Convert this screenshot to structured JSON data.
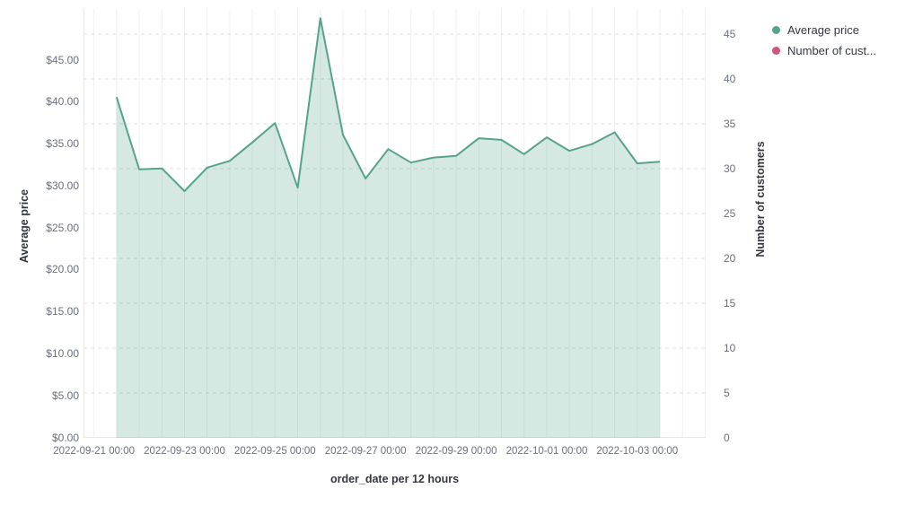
{
  "legend": {
    "items": [
      {
        "label": "Average price",
        "color": "#56a38d"
      },
      {
        "label": "Number of cust...",
        "color": "#c9587c"
      }
    ]
  },
  "axes": {
    "left": {
      "title": "Average price",
      "ticks": [
        "$0.00",
        "$5.00",
        "$10.00",
        "$15.00",
        "$20.00",
        "$25.00",
        "$30.00",
        "$35.00",
        "$40.00",
        "$45.00"
      ]
    },
    "right": {
      "title": "Number of customers",
      "ticks": [
        "0",
        "5",
        "10",
        "15",
        "20",
        "25",
        "30",
        "35",
        "40",
        "45"
      ]
    },
    "x": {
      "title": "order_date per 12 hours",
      "ticks": [
        "2022-09-21 00:00",
        "2022-09-23 00:00",
        "2022-09-25 00:00",
        "2022-09-27 00:00",
        "2022-09-29 00:00",
        "2022-10-01 00:00",
        "2022-10-03 00:00"
      ]
    }
  },
  "chart_data": {
    "type": "area",
    "title": "",
    "xlabel": "order_date per 12 hours",
    "ylabel_left": "Average price",
    "ylabel_right": "Number of customers",
    "x_interval": "12 hours",
    "x": [
      "2022-09-21 12:00",
      "2022-09-22 00:00",
      "2022-09-22 12:00",
      "2022-09-23 00:00",
      "2022-09-23 12:00",
      "2022-09-24 00:00",
      "2022-09-24 12:00",
      "2022-09-25 00:00",
      "2022-09-25 12:00",
      "2022-09-26 00:00",
      "2022-09-26 12:00",
      "2022-09-27 00:00",
      "2022-09-27 12:00",
      "2022-09-28 00:00",
      "2022-09-28 12:00",
      "2022-09-29 00:00",
      "2022-09-29 12:00",
      "2022-09-30 00:00",
      "2022-09-30 12:00",
      "2022-10-01 00:00",
      "2022-10-01 12:00",
      "2022-10-02 00:00",
      "2022-10-02 12:00",
      "2022-10-03 00:00",
      "2022-10-03 12:00"
    ],
    "series": [
      {
        "name": "Average price",
        "axis": "left",
        "color": "#56a38d",
        "fill": "rgba(86,163,141,0.25)",
        "values": [
          40.6,
          32.0,
          32.1,
          29.4,
          32.2,
          33.0,
          35.2,
          37.5,
          29.8,
          50.0,
          36.1,
          30.9,
          34.4,
          32.8,
          33.4,
          33.6,
          35.7,
          35.5,
          33.8,
          35.8,
          34.2,
          35.0,
          36.4,
          32.7,
          32.9
        ]
      },
      {
        "name": "Number of customers",
        "axis": "right",
        "color": "#c9587c",
        "values": []
      }
    ],
    "ylim_left": [
      0,
      51.1
    ],
    "ylim_right": [
      0,
      47.8
    ],
    "xlim_units_from_first_tick": [
      -0.46,
      27.02
    ],
    "grid": {
      "horizontal": "dashed",
      "vertical": "solid",
      "legend_position": "top-right"
    }
  }
}
